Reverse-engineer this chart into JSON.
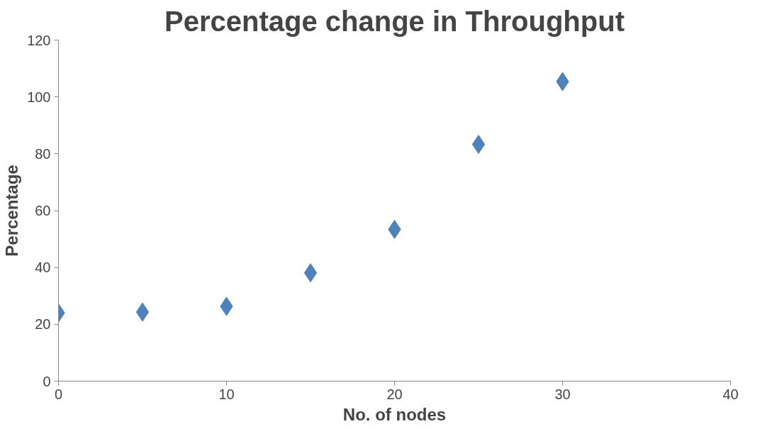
{
  "chart_data": {
    "type": "scatter",
    "title": "Percentage change in Throughput",
    "xlabel": "No. of nodes",
    "ylabel": "Percentage",
    "x": [
      0,
      5,
      10,
      15,
      20,
      25,
      30
    ],
    "series": [
      {
        "color": "#4f81bd",
        "values": [
          24.0,
          24.3,
          26.3,
          38.1,
          53.4,
          83.3,
          105.4
        ]
      }
    ],
    "xlim": [
      0,
      40
    ],
    "xticks": [
      0,
      10,
      20,
      30,
      40
    ],
    "ylim": [
      0,
      120
    ],
    "yticks": [
      0,
      20,
      40,
      60,
      80,
      100,
      120
    ],
    "grid": false,
    "marker": "diamond"
  }
}
